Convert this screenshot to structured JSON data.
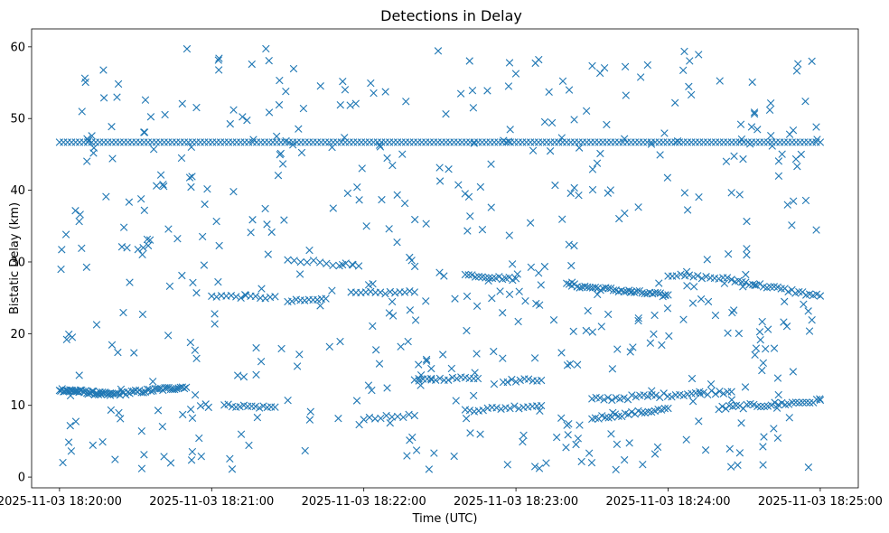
{
  "chart_data": {
    "type": "scatter",
    "title": "Detections in Delay",
    "xlabel": "Time (UTC)",
    "ylabel": "Bistatic Delay (km)",
    "x_start": "2025-11-03 18:20:00",
    "x_end": "2025-11-03 18:25:00",
    "xlim": [
      "2025-11-03 18:19:49",
      "2025-11-03 18:25:15"
    ],
    "ylim": [
      -1.5,
      62.5
    ],
    "x_ticks": [
      "2025-11-03 18:20:00",
      "2025-11-03 18:21:00",
      "2025-11-03 18:22:00",
      "2025-11-03 18:23:00",
      "2025-11-03 18:24:00",
      "2025-11-03 18:25:00"
    ],
    "y_ticks": [
      0,
      10,
      20,
      30,
      40,
      50,
      60
    ],
    "marker": "x",
    "color": "#1f77b4",
    "grid": false,
    "series": [
      {
        "points": []
      }
    ],
    "tracks": [
      {
        "from": "2025-11-03 18:20:00",
        "to": "2025-11-03 18:25:00",
        "y0": 46.7,
        "y1": 46.7,
        "count": 190,
        "jitter": 0.0
      },
      {
        "from": "2025-11-03 18:20:00",
        "to": "2025-11-03 18:20:20",
        "y0": 12.2,
        "y1": 11.5,
        "count": 40,
        "jitter": 0.25
      },
      {
        "from": "2025-11-03 18:20:20",
        "to": "2025-11-03 18:20:50",
        "y0": 11.5,
        "y1": 12.6,
        "count": 40,
        "jitter": 0.25
      },
      {
        "from": "2025-11-03 18:21:05",
        "to": "2025-11-03 18:21:25",
        "y0": 10.0,
        "y1": 9.7,
        "count": 14,
        "jitter": 0.2
      },
      {
        "from": "2025-11-03 18:21:00",
        "to": "2025-11-03 18:21:25",
        "y0": 25.3,
        "y1": 25.0,
        "count": 14,
        "jitter": 0.2
      },
      {
        "from": "2025-11-03 18:21:30",
        "to": "2025-11-03 18:21:45",
        "y0": 24.5,
        "y1": 24.8,
        "count": 10,
        "jitter": 0.2
      },
      {
        "from": "2025-11-03 18:21:30",
        "to": "2025-11-03 18:21:58",
        "y0": 30.4,
        "y1": 29.4,
        "count": 12,
        "jitter": 0.25
      },
      {
        "from": "2025-11-03 18:21:55",
        "to": "2025-11-03 18:22:20",
        "y0": 25.6,
        "y1": 25.8,
        "count": 14,
        "jitter": 0.2
      },
      {
        "from": "2025-11-03 18:22:00",
        "to": "2025-11-03 18:22:20",
        "y0": 8.2,
        "y1": 8.6,
        "count": 10,
        "jitter": 0.2
      },
      {
        "from": "2025-11-03 18:22:20",
        "to": "2025-11-03 18:22:45",
        "y0": 13.5,
        "y1": 13.9,
        "count": 16,
        "jitter": 0.2
      },
      {
        "from": "2025-11-03 18:22:40",
        "to": "2025-11-03 18:23:00",
        "y0": 28.2,
        "y1": 27.6,
        "count": 16,
        "jitter": 0.2
      },
      {
        "from": "2025-11-03 18:22:40",
        "to": "2025-11-03 18:23:10",
        "y0": 9.3,
        "y1": 10.0,
        "count": 18,
        "jitter": 0.25
      },
      {
        "from": "2025-11-03 18:22:55",
        "to": "2025-11-03 18:23:10",
        "y0": 13.4,
        "y1": 13.6,
        "count": 10,
        "jitter": 0.2
      },
      {
        "from": "2025-11-03 18:23:20",
        "to": "2025-11-03 18:24:00",
        "y0": 26.8,
        "y1": 25.3,
        "count": 40,
        "jitter": 0.25
      },
      {
        "from": "2025-11-03 18:23:30",
        "to": "2025-11-03 18:24:00",
        "y0": 8.2,
        "y1": 9.5,
        "count": 24,
        "jitter": 0.25
      },
      {
        "from": "2025-11-03 18:23:30",
        "to": "2025-11-03 18:24:25",
        "y0": 10.8,
        "y1": 12.0,
        "count": 36,
        "jitter": 0.3
      },
      {
        "from": "2025-11-03 18:24:00",
        "to": "2025-11-03 18:24:25",
        "y0": 28.2,
        "y1": 27.6,
        "count": 16,
        "jitter": 0.2
      },
      {
        "from": "2025-11-03 18:24:25",
        "to": "2025-11-03 18:25:00",
        "y0": 27.5,
        "y1": 25.2,
        "count": 26,
        "jitter": 0.25
      },
      {
        "from": "2025-11-03 18:24:20",
        "to": "2025-11-03 18:25:00",
        "y0": 9.6,
        "y1": 10.6,
        "count": 30,
        "jitter": 0.3
      }
    ],
    "clutter_points": 520,
    "clutter_y_range": [
      1.0,
      60.0
    ]
  }
}
